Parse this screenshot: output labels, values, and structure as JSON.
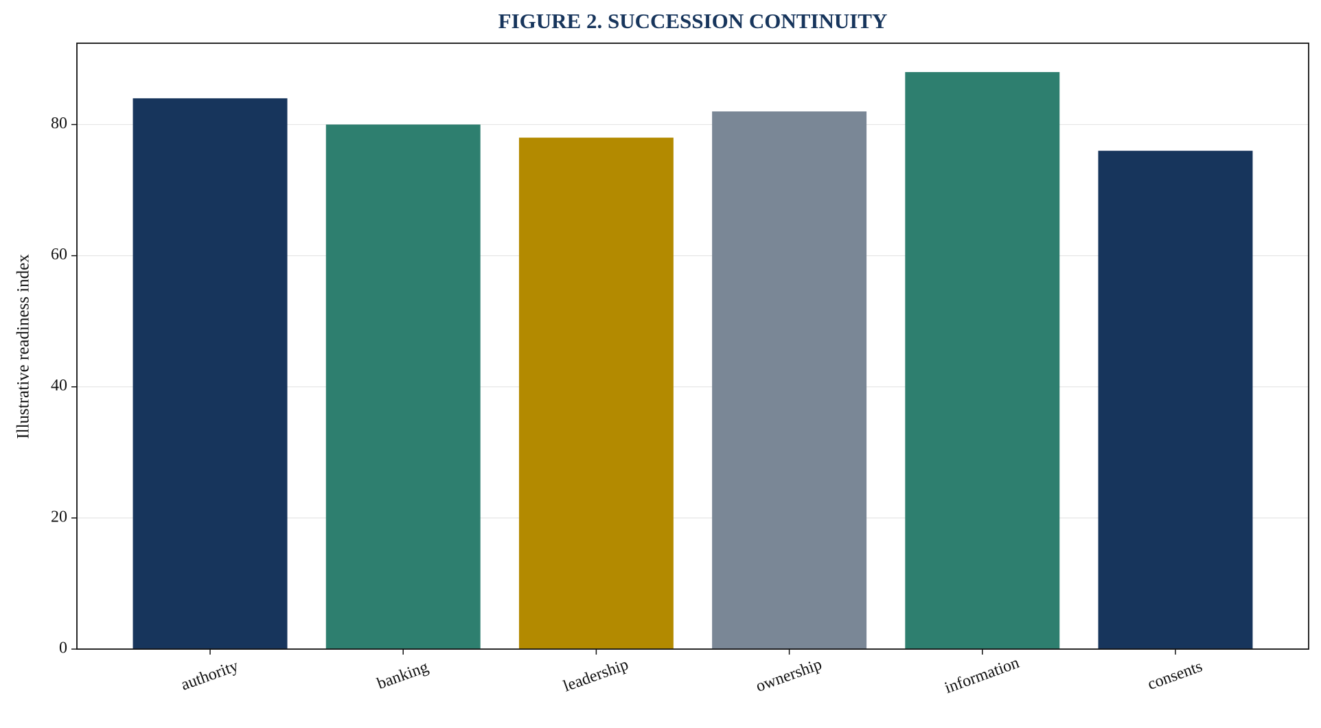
{
  "chart_data": {
    "type": "bar",
    "title": "FIGURE 2. SUCCESSION CONTINUITY",
    "y_label": "Illustrative readiness index",
    "categories": [
      "authority",
      "banking",
      "leadership",
      "ownership",
      "information",
      "consents"
    ],
    "values": [
      84,
      80,
      78,
      82,
      88,
      76
    ],
    "colors": [
      "#17355c",
      "#2e7f6f",
      "#b38a00",
      "#7a8796",
      "#2e7f6f",
      "#17355c"
    ],
    "ylim": [
      0,
      92.4
    ],
    "yticks": [
      0,
      20,
      40,
      60,
      80
    ],
    "grid": true
  }
}
